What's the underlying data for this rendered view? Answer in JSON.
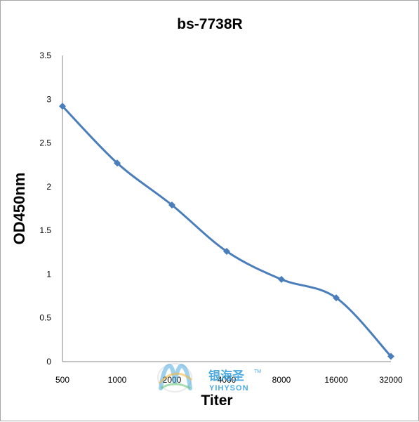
{
  "chart_data": {
    "type": "line",
    "title": "bs-7738R",
    "xlabel": "Titer",
    "ylabel": "OD450nm",
    "categories": [
      "500",
      "1000",
      "2000",
      "4000",
      "8000",
      "16000",
      "32000"
    ],
    "series": [
      {
        "values": [
          2.92,
          2.27,
          1.79,
          1.26,
          0.94,
          0.73,
          0.06
        ]
      }
    ],
    "ylim": [
      0,
      3.5
    ],
    "yticks": [
      "0",
      "0.5",
      "1",
      "1.5",
      "2",
      "2.5",
      "3",
      "3.5"
    ],
    "grid": false,
    "smooth": true,
    "colors": {
      "series": "#4a7ebb",
      "axis": "#868686",
      "watermark": "#3aa3dd"
    }
  },
  "watermark": {
    "cn": "银海圣",
    "en": "YIHYSON",
    "tm": "TM"
  }
}
